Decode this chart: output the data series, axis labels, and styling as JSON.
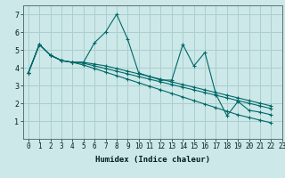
{
  "bg_color": "#cce8e8",
  "grid_color": "#aacece",
  "line_color": "#006868",
  "xlabel": "Humidex (Indice chaleur)",
  "xlim": [
    -0.5,
    23
  ],
  "ylim": [
    0,
    7.5
  ],
  "xticks": [
    0,
    1,
    2,
    3,
    4,
    5,
    6,
    7,
    8,
    9,
    10,
    11,
    12,
    13,
    14,
    15,
    16,
    17,
    18,
    19,
    20,
    21,
    22,
    23
  ],
  "yticks": [
    1,
    2,
    3,
    4,
    5,
    6,
    7
  ],
  "series": [
    [
      3.7,
      5.3,
      4.7,
      4.4,
      4.3,
      4.3,
      5.4,
      6.0,
      7.0,
      5.6,
      3.7,
      3.5,
      3.3,
      3.3,
      5.3,
      4.1,
      4.85,
      2.5,
      1.3,
      2.1,
      1.6,
      1.5,
      1.35
    ],
    [
      3.7,
      5.3,
      4.7,
      4.4,
      4.3,
      4.3,
      4.2,
      4.1,
      3.95,
      3.8,
      3.65,
      3.5,
      3.35,
      3.2,
      3.05,
      2.9,
      2.75,
      2.6,
      2.45,
      2.3,
      2.15,
      2.0,
      1.85
    ],
    [
      3.7,
      5.3,
      4.7,
      4.4,
      4.3,
      4.25,
      4.1,
      3.95,
      3.8,
      3.65,
      3.5,
      3.35,
      3.2,
      3.05,
      2.9,
      2.75,
      2.6,
      2.45,
      2.3,
      2.15,
      2.0,
      1.85,
      1.7
    ],
    [
      3.7,
      5.3,
      4.7,
      4.4,
      4.3,
      4.15,
      3.95,
      3.75,
      3.55,
      3.35,
      3.15,
      2.95,
      2.75,
      2.55,
      2.35,
      2.15,
      1.95,
      1.75,
      1.55,
      1.35,
      1.2,
      1.05,
      0.9
    ]
  ],
  "tick_fontsize": 5.5,
  "ylabel_fontsize": 6,
  "xlabel_fontsize": 6.5
}
